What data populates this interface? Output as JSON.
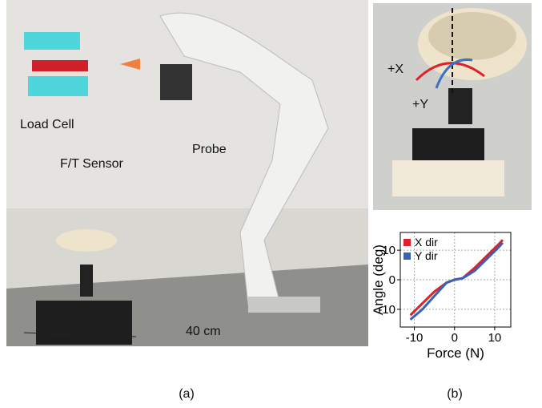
{
  "figure": {
    "panel_a": {
      "labels": [
        "Load Cell",
        "F/T Sensor",
        "Probe",
        "40 cm"
      ],
      "caption": "(a)"
    },
    "panel_b": {
      "labels": [
        "+X",
        "+Y"
      ],
      "caption": "(b)"
    }
  },
  "chart_data": {
    "type": "line",
    "x_label": "Force (N)",
    "y_label": "Angle (deg)",
    "x": [
      -11,
      -8,
      -5,
      -2,
      0,
      2,
      5,
      8,
      11,
      12
    ],
    "series": [
      {
        "name": "X dir",
        "color": "#e0202a",
        "values": [
          -12,
          -8,
          -4,
          -1,
          0,
          0.5,
          4,
          8,
          12,
          13.5
        ]
      },
      {
        "name": "Y dir",
        "color": "#3a62b4",
        "values": [
          -13.5,
          -10,
          -5.5,
          -1,
          0,
          0.5,
          3,
          7,
          11,
          12.5
        ]
      }
    ],
    "xlim": [
      -13.5,
      14
    ],
    "ylim": [
      -16,
      16
    ],
    "xticks": [
      -10,
      0,
      10
    ],
    "yticks": [
      -10,
      0,
      10
    ],
    "grid": true,
    "legend": "upper left"
  }
}
